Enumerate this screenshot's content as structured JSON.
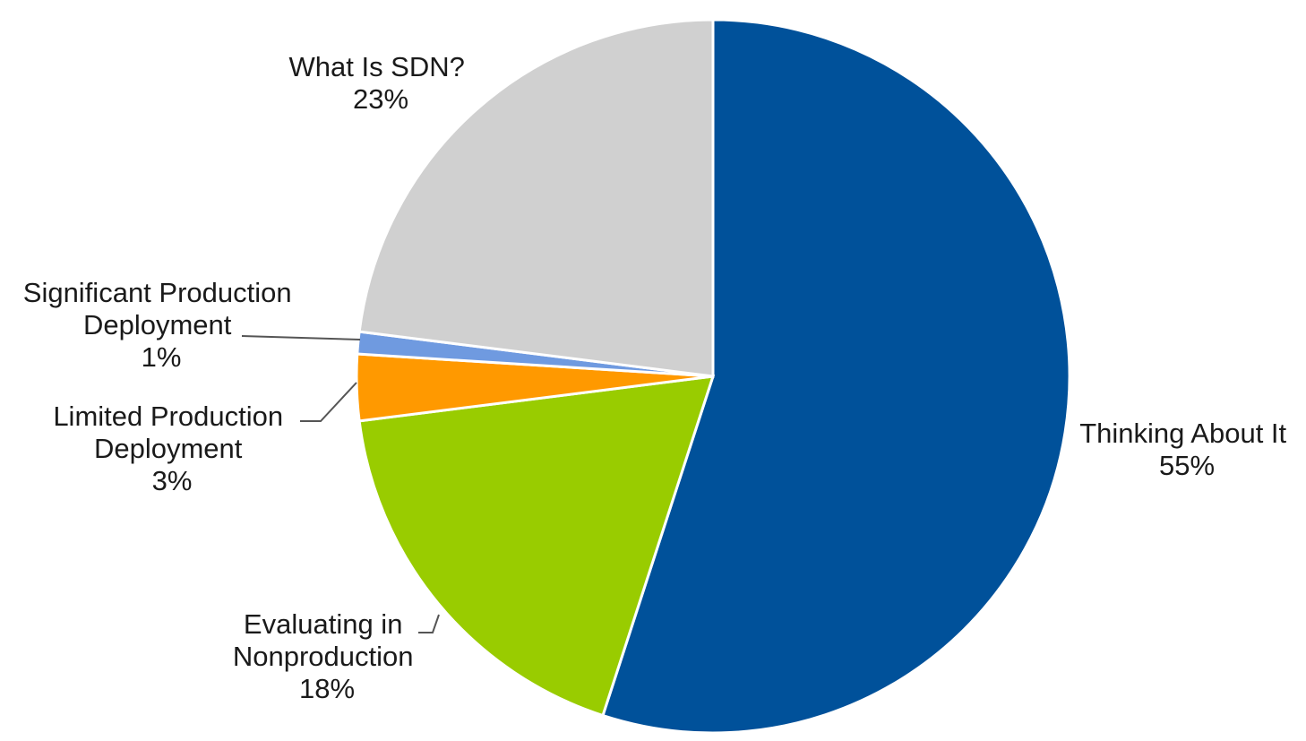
{
  "chart_data": {
    "type": "pie",
    "title": "",
    "slices": [
      {
        "label_lines": [
          "Thinking About It"
        ],
        "value_label": "55%",
        "value": 55,
        "color": "#00519a"
      },
      {
        "label_lines": [
          "Evaluating in",
          "Nonproduction"
        ],
        "value_label": "18%",
        "value": 18,
        "color": "#99cc00"
      },
      {
        "label_lines": [
          "Limited Production",
          "Deployment"
        ],
        "value_label": "3%",
        "value": 3,
        "color": "#ff9900"
      },
      {
        "label_lines": [
          "Significant Production",
          "Deployment"
        ],
        "value_label": "1%",
        "value": 1,
        "color": "#6f9ae0"
      },
      {
        "label_lines": [
          "What Is SDN?"
        ],
        "value_label": "23%",
        "value": 23,
        "color": "#d0d0d0"
      }
    ],
    "start": "12 o'clock",
    "direction": "clockwise",
    "legend": "none",
    "labels": "outside slices"
  }
}
